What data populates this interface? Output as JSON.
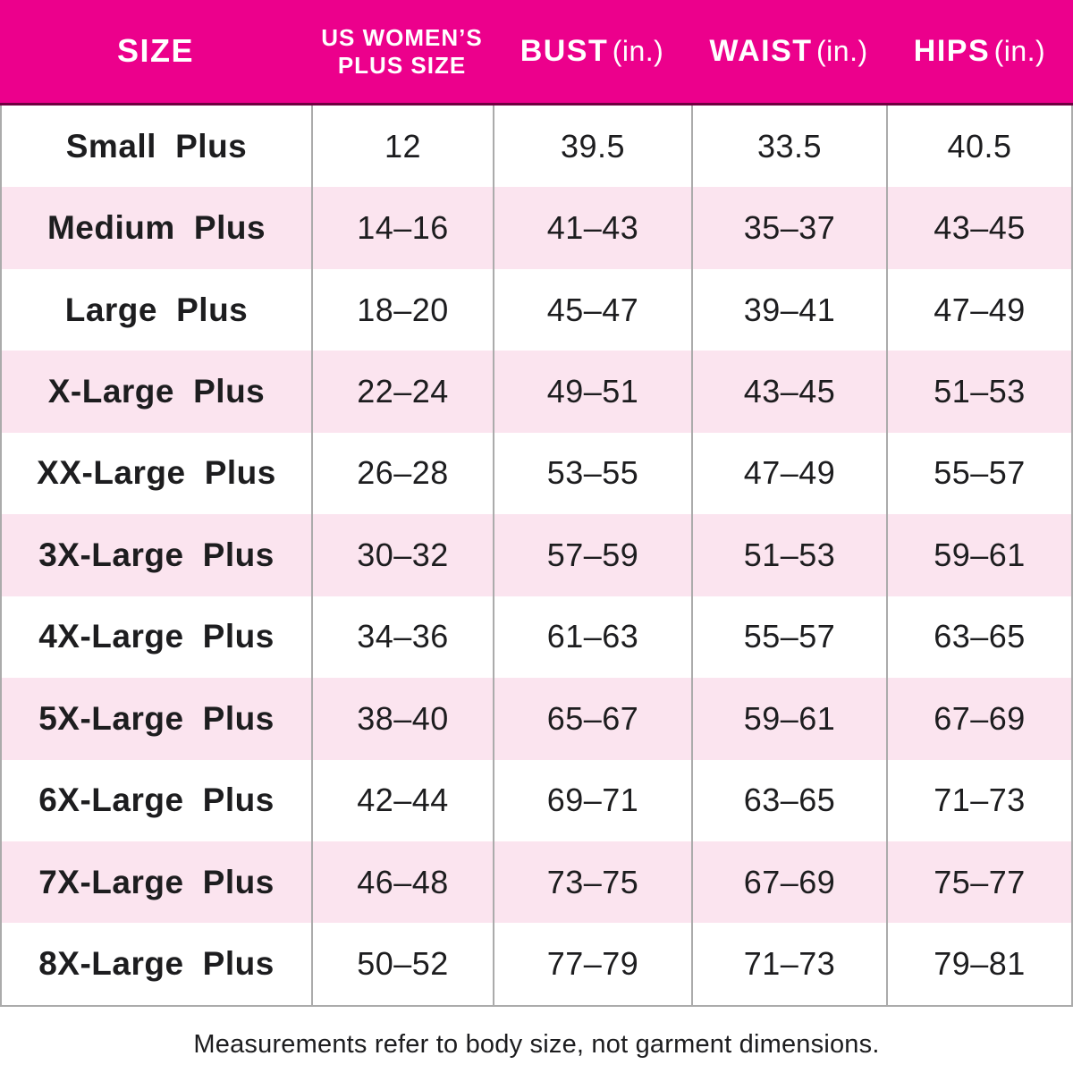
{
  "table": {
    "header": {
      "size": "SIZE",
      "plus_line1": "US WOMEN’S",
      "plus_line2": "PLUS SIZE",
      "bust": "BUST",
      "waist": "WAIST",
      "hips": "HIPS",
      "unit": "(in.)"
    },
    "rows": [
      {
        "size": "Small Plus",
        "plus_size": "12",
        "bust": "39.5",
        "waist": "33.5",
        "hips": "40.5"
      },
      {
        "size": "Medium Plus",
        "plus_size": "14–16",
        "bust": "41–43",
        "waist": "35–37",
        "hips": "43–45"
      },
      {
        "size": "Large Plus",
        "plus_size": "18–20",
        "bust": "45–47",
        "waist": "39–41",
        "hips": "47–49"
      },
      {
        "size": "X-Large Plus",
        "plus_size": "22–24",
        "bust": "49–51",
        "waist": "43–45",
        "hips": "51–53"
      },
      {
        "size": "XX-Large Plus",
        "plus_size": "26–28",
        "bust": "53–55",
        "waist": "47–49",
        "hips": "55–57"
      },
      {
        "size": "3X-Large Plus",
        "plus_size": "30–32",
        "bust": "57–59",
        "waist": "51–53",
        "hips": "59–61"
      },
      {
        "size": "4X-Large Plus",
        "plus_size": "34–36",
        "bust": "61–63",
        "waist": "55–57",
        "hips": "63–65"
      },
      {
        "size": "5X-Large Plus",
        "plus_size": "38–40",
        "bust": "65–67",
        "waist": "59–61",
        "hips": "67–69"
      },
      {
        "size": "6X-Large Plus",
        "plus_size": "42–44",
        "bust": "69–71",
        "waist": "63–65",
        "hips": "71–73"
      },
      {
        "size": "7X-Large Plus",
        "plus_size": "46–48",
        "bust": "73–75",
        "waist": "67–69",
        "hips": "75–77"
      },
      {
        "size": "8X-Large Plus",
        "plus_size": "50–52",
        "bust": "77–79",
        "waist": "71–73",
        "hips": "79–81"
      }
    ]
  },
  "footer": {
    "note": "Measurements refer to body size, not garment dimensions."
  },
  "colors": {
    "header_bg": "#EC008C",
    "header_text": "#FFFFFF",
    "header_underline": "#6E0040",
    "alt_row_bg": "#FBE4EF",
    "grid_border": "#ABABAB",
    "body_text": "#1D1D1F"
  },
  "chart_data": {
    "type": "table",
    "title": "US Women's Plus size chart",
    "columns": [
      "SIZE",
      "US WOMEN’S PLUS SIZE",
      "BUST (in.)",
      "WAIST (in.)",
      "HIPS (in.)"
    ],
    "rows": [
      [
        "Small Plus",
        "12",
        "39.5",
        "33.5",
        "40.5"
      ],
      [
        "Medium Plus",
        "14–16",
        "41–43",
        "35–37",
        "43–45"
      ],
      [
        "Large Plus",
        "18–20",
        "45–47",
        "39–41",
        "47–49"
      ],
      [
        "X-Large Plus",
        "22–24",
        "49–51",
        "43–45",
        "51–53"
      ],
      [
        "XX-Large Plus",
        "26–28",
        "53–55",
        "47–49",
        "55–57"
      ],
      [
        "3X-Large Plus",
        "30–32",
        "57–59",
        "51–53",
        "59–61"
      ],
      [
        "4X-Large Plus",
        "34–36",
        "61–63",
        "55–57",
        "63–65"
      ],
      [
        "5X-Large Plus",
        "38–40",
        "65–67",
        "59–61",
        "67–69"
      ],
      [
        "6X-Large Plus",
        "42–44",
        "69–71",
        "63–65",
        "71–73"
      ],
      [
        "7X-Large Plus",
        "46–48",
        "73–75",
        "67–69",
        "75–77"
      ],
      [
        "8X-Large Plus",
        "50–52",
        "77–79",
        "71–73",
        "79–81"
      ]
    ],
    "footnote": "Measurements refer to body size, not garment dimensions.",
    "layout": {
      "alternating_row_shading": true,
      "vertical_gridlines": true,
      "horizontal_gridlines": false
    }
  }
}
